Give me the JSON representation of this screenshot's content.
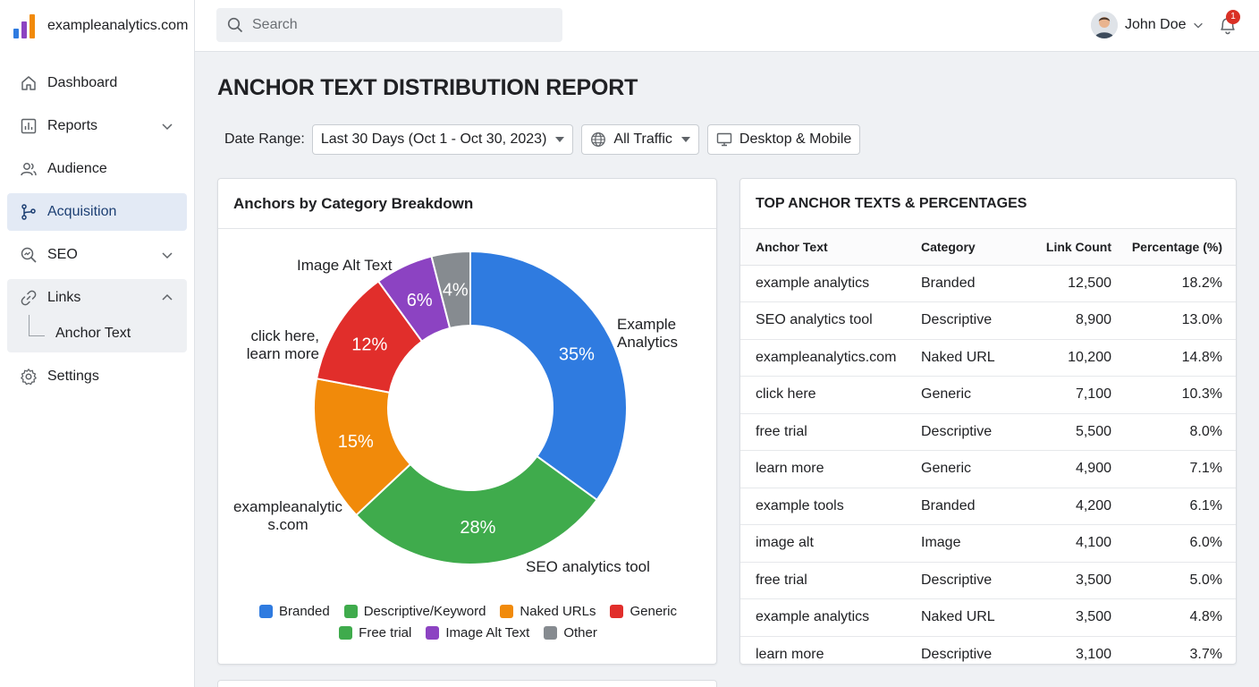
{
  "brand": {
    "name": "exampleanalytics.com"
  },
  "colors": {
    "branded": "#2f7be0",
    "descriptive": "#3fab4c",
    "naked": "#f18a0a",
    "generic": "#e12e2b",
    "image_alt": "#8c43c2",
    "other": "#868b90",
    "active_bg": "#e3eaf5"
  },
  "sidebar": {
    "items": [
      {
        "label": "Dashboard",
        "icon": "home-icon"
      },
      {
        "label": "Reports",
        "icon": "bar-chart-icon"
      },
      {
        "label": "Audience",
        "icon": "users-icon"
      },
      {
        "label": "Acquisition",
        "icon": "branch-icon"
      },
      {
        "label": "SEO",
        "icon": "magnifier-chart-icon"
      },
      {
        "label": "Links",
        "icon": "link-icon"
      },
      {
        "label": "Settings",
        "icon": "gear-icon"
      }
    ],
    "sub_items": [
      {
        "label": "Anchor Text"
      }
    ]
  },
  "topbar": {
    "search_placeholder": "Search",
    "user_name": "John Doe",
    "notification_count": "1"
  },
  "page": {
    "title": "ANCHOR TEXT DISTRIBUTION REPORT"
  },
  "filters": {
    "date_label": "Date Range:",
    "date_value": "Last 30 Days (Oct 1 - Oct 30, 2023)",
    "traffic_value": "All Traffic",
    "device_value": "Desktop & Mobile"
  },
  "chart_card": {
    "title": "Anchors by Category Breakdown"
  },
  "table_card": {
    "title": "TOP ANCHOR TEXTS & PERCENTAGES",
    "columns": [
      "Anchor Text",
      "Category",
      "Link Count",
      "Percentage (%)"
    ],
    "rows": [
      [
        "example analytics",
        "Branded",
        "12,500",
        "18.2%"
      ],
      [
        "SEO analytics tool",
        "Descriptive",
        "8,900",
        "13.0%"
      ],
      [
        "exampleanalytics.com",
        "Naked URL",
        "10,200",
        "14.8%"
      ],
      [
        "click here",
        "Generic",
        "7,100",
        "10.3%"
      ],
      [
        "free trial",
        "Descriptive",
        "5,500",
        "8.0%"
      ],
      [
        "learn more",
        "Generic",
        "4,900",
        "7.1%"
      ],
      [
        "example tools",
        "Branded",
        "4,200",
        "6.1%"
      ],
      [
        "image alt",
        "Image",
        "4,100",
        "6.0%"
      ],
      [
        "free trial",
        "Descriptive",
        "3,500",
        "5.0%"
      ],
      [
        "example analytics",
        "Naked URL",
        "3,500",
        "4.8%"
      ],
      [
        "learn more",
        "Descriptive",
        "3,100",
        "3.7%"
      ]
    ]
  },
  "chart_data": {
    "type": "pie",
    "title": "Anchors by Category Breakdown",
    "donut": true,
    "slices": [
      {
        "label": "Example Analytics",
        "value": 35,
        "value_label": "35%",
        "color": "#2f7be0"
      },
      {
        "label": "SEO analytics tool",
        "value": 28,
        "value_label": "28%",
        "color": "#3fab4c"
      },
      {
        "label": "exampleanalytics.com",
        "value": 15,
        "value_label": "15%",
        "color": "#f18a0a"
      },
      {
        "label": "click here, learn more",
        "value": 12,
        "value_label": "12%",
        "color": "#e12e2b"
      },
      {
        "label": "Image Alt Text",
        "value": 6,
        "value_label": "6%",
        "color": "#8c43c2"
      },
      {
        "label": "",
        "value": 4,
        "value_label": "4%",
        "color": "#868b90"
      }
    ],
    "legend": [
      {
        "name": "Branded",
        "color": "#2f7be0"
      },
      {
        "name": "Descriptive/Keyword",
        "color": "#3fab4c"
      },
      {
        "name": "Naked URLs",
        "color": "#f18a0a"
      },
      {
        "name": "Generic",
        "color": "#e12e2b"
      },
      {
        "name": "Free trial",
        "color": "#3fab4c"
      },
      {
        "name": "Image Alt Text",
        "color": "#8c43c2"
      },
      {
        "name": "Other",
        "color": "#868b90"
      }
    ],
    "legend_placement": "bottom"
  }
}
